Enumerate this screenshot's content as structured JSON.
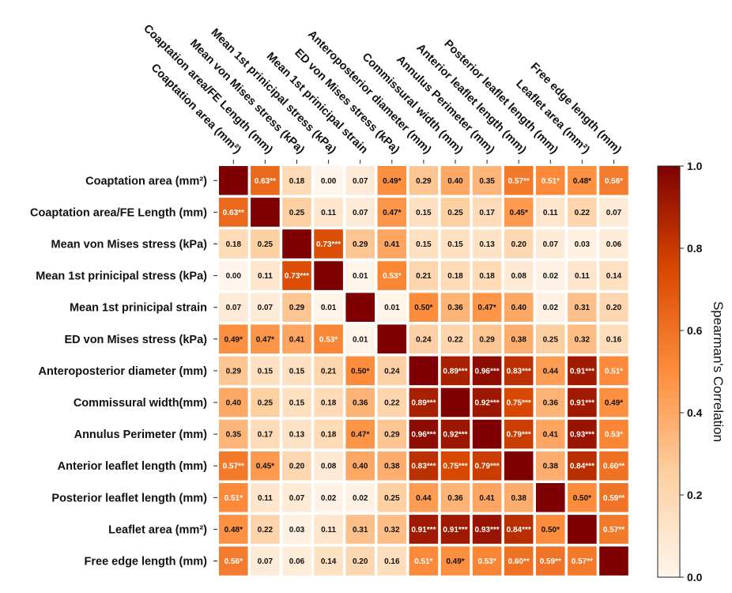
{
  "chart_data": {
    "type": "heatmap",
    "row_labels": [
      "Coaptation area (mm²)",
      "Coaptation area/FE Length (mm)",
      "Mean von Mises stress (kPa)",
      "Mean 1st prinicipal stress (kPa)",
      "Mean 1st prinicipal strain",
      "ED von Mises stress (kPa)",
      "Anteroposterior diameter (mm)",
      "Commissural width(mm)",
      "Annulus Perimeter  (mm)",
      "Anterior leaflet length (mm)",
      "Posterior leaflet length (mm)",
      "Leaflet area (mm²)",
      "Free edge length (mm)"
    ],
    "col_labels": [
      "Coaptation area (mm²)",
      "Coaptation area/FE Length (mm)",
      "Mean von Mises stress (kPa)",
      "Mean 1st prinicipal stress (kPa)",
      "Mean 1st prinicipal strain",
      "ED von Mises stress (kPa)",
      "Anteroposterior diameter (mm)",
      "Commissural width (mm)",
      "Annulus Perimeter (mm)",
      "Anterior leaflet length (mm)",
      "Posterior leaflet length (mm)",
      "Leaflet area (mm²)",
      "Free edge length (mm)"
    ],
    "cells": [
      [
        "",
        "0.63**",
        "0.18",
        "0.00",
        "0.07",
        "0.49*",
        "0.29",
        "0.40",
        "0.35",
        "0.57**",
        "0.51*",
        "0.48*",
        "0.56*"
      ],
      [
        "0.63**",
        "",
        "0.25",
        "0.11",
        "0.07",
        "0.47*",
        "0.15",
        "0.25",
        "0.17",
        "0.45*",
        "0.11",
        "0.22",
        "0.07"
      ],
      [
        "0.18",
        "0.25",
        "",
        "0.73***",
        "0.29",
        "0.41",
        "0.15",
        "0.15",
        "0.13",
        "0.20",
        "0.07",
        "0.03",
        "0.06"
      ],
      [
        "0.00",
        "0.11",
        "0.73***",
        "",
        "0.01",
        "0.53*",
        "0.21",
        "0.18",
        "0.18",
        "0.08",
        "0.02",
        "0.11",
        "0.14"
      ],
      [
        "0.07",
        "0.07",
        "0.29",
        "0.01",
        "",
        "0.01",
        "0.50*",
        "0.36",
        "0.47*",
        "0.40",
        "0.02",
        "0.31",
        "0.20"
      ],
      [
        "0.49*",
        "0.47*",
        "0.41",
        "0.53*",
        "0.01",
        "",
        "0.24",
        "0.22",
        "0.29",
        "0.38",
        "0.25",
        "0.32",
        "0.16"
      ],
      [
        "0.29",
        "0.15",
        "0.15",
        "0.21",
        "0.50*",
        "0.24",
        "",
        "0.89***",
        "0.96***",
        "0.83***",
        "0.44",
        "0.91***",
        "0.51*"
      ],
      [
        "0.40",
        "0.25",
        "0.15",
        "0.18",
        "0.36",
        "0.22",
        "0.89***",
        "",
        "0.92***",
        "0.75***",
        "0.36",
        "0.91***",
        "0.49*"
      ],
      [
        "0.35",
        "0.17",
        "0.13",
        "0.18",
        "0.47*",
        "0.29",
        "0.96***",
        "0.92***",
        "",
        "0.79***",
        "0.41",
        "0.93***",
        "0.53*"
      ],
      [
        "0.57**",
        "0.45*",
        "0.20",
        "0.08",
        "0.40",
        "0.38",
        "0.83***",
        "0.75***",
        "0.79***",
        "",
        "0.38",
        "0.84***",
        "0.60**"
      ],
      [
        "0.51*",
        "0.11",
        "0.07",
        "0.02",
        "0.02",
        "0.25",
        "0.44",
        "0.36",
        "0.41",
        "0.38",
        "",
        "0.50*",
        "0.59**"
      ],
      [
        "0.48*",
        "0.22",
        "0.03",
        "0.11",
        "0.31",
        "0.32",
        "0.91***",
        "0.91***",
        "0.93***",
        "0.84***",
        "0.50*",
        "",
        "0.57**"
      ],
      [
        "0.56*",
        "0.07",
        "0.06",
        "0.14",
        "0.20",
        "0.16",
        "0.51*",
        "0.49*",
        "0.53*",
        "0.60**",
        "0.59**",
        "0.57**",
        ""
      ]
    ],
    "values": [
      [
        1.0,
        0.63,
        0.18,
        0.0,
        0.07,
        0.49,
        0.29,
        0.4,
        0.35,
        0.57,
        0.51,
        0.48,
        0.56
      ],
      [
        0.63,
        1.0,
        0.25,
        0.11,
        0.07,
        0.47,
        0.15,
        0.25,
        0.17,
        0.45,
        0.11,
        0.22,
        0.07
      ],
      [
        0.18,
        0.25,
        1.0,
        0.73,
        0.29,
        0.41,
        0.15,
        0.15,
        0.13,
        0.2,
        0.07,
        0.03,
        0.06
      ],
      [
        0.0,
        0.11,
        0.73,
        1.0,
        0.01,
        0.53,
        0.21,
        0.18,
        0.18,
        0.08,
        0.02,
        0.11,
        0.14
      ],
      [
        0.07,
        0.07,
        0.29,
        0.01,
        1.0,
        0.01,
        0.5,
        0.36,
        0.47,
        0.4,
        0.02,
        0.31,
        0.2
      ],
      [
        0.49,
        0.47,
        0.41,
        0.53,
        0.01,
        1.0,
        0.24,
        0.22,
        0.29,
        0.38,
        0.25,
        0.32,
        0.16
      ],
      [
        0.29,
        0.15,
        0.15,
        0.21,
        0.5,
        0.24,
        1.0,
        0.89,
        0.96,
        0.83,
        0.44,
        0.91,
        0.51
      ],
      [
        0.4,
        0.25,
        0.15,
        0.18,
        0.36,
        0.22,
        0.89,
        1.0,
        0.92,
        0.75,
        0.36,
        0.91,
        0.49
      ],
      [
        0.35,
        0.17,
        0.13,
        0.18,
        0.47,
        0.29,
        0.96,
        0.92,
        1.0,
        0.79,
        0.41,
        0.93,
        0.53
      ],
      [
        0.57,
        0.45,
        0.2,
        0.08,
        0.4,
        0.38,
        0.83,
        0.75,
        0.79,
        1.0,
        0.38,
        0.84,
        0.6
      ],
      [
        0.51,
        0.11,
        0.07,
        0.02,
        0.02,
        0.25,
        0.44,
        0.36,
        0.41,
        0.38,
        1.0,
        0.5,
        0.59
      ],
      [
        0.48,
        0.22,
        0.03,
        0.11,
        0.31,
        0.32,
        0.91,
        0.91,
        0.93,
        0.84,
        0.5,
        1.0,
        0.57
      ],
      [
        0.56,
        0.07,
        0.06,
        0.14,
        0.2,
        0.16,
        0.51,
        0.49,
        0.53,
        0.6,
        0.59,
        0.57,
        1.0
      ]
    ],
    "colorbar": {
      "label": "Spearman's Correlation",
      "range": [
        0.0,
        1.0
      ],
      "ticks": [
        "0.0",
        "0.2",
        "0.4",
        "0.6",
        "0.8",
        "1.0"
      ],
      "colormap": [
        "#fff5eb",
        "#fdd0a2",
        "#fd8d3c",
        "#d94801",
        "#7f0000"
      ]
    }
  }
}
